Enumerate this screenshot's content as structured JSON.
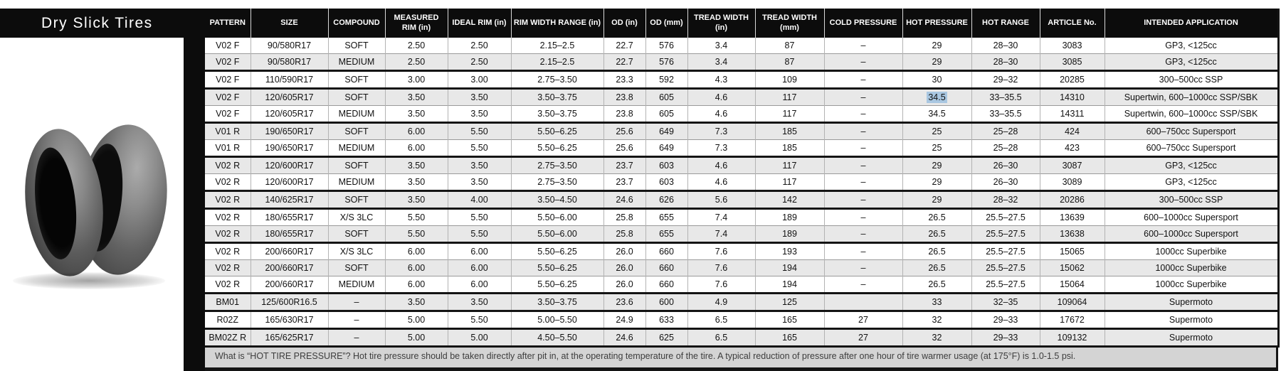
{
  "title": "Dry Slick Tires",
  "colors": {
    "header_bg": "#0c0c0c",
    "row_alt": "#e8e8e8",
    "selection_highlight": "#a9c7e1",
    "footer_bg": "#d4d4d4"
  },
  "graphics": {
    "tire_photo": "two-dry-slick-motorcycle-tires-photo"
  },
  "table": {
    "columns": [
      "PATTERN",
      "SIZE",
      "COMPOUND",
      "MEASURED RIM (in)",
      "IDEAL RIM (in)",
      "RIM WIDTH RANGE (in)",
      "OD (in)",
      "OD (mm)",
      "TREAD WIDTH (in)",
      "TREAD WIDTH (mm)",
      "COLD PRESSURE",
      "HOT PRESSURE",
      "HOT RANGE",
      "ARTICLE No.",
      "INTENDED APPLICATION"
    ],
    "rows": [
      {
        "cells": [
          "V02 F",
          "90/580R17",
          "SOFT",
          "2.50",
          "2.50",
          "2.15–2.5",
          "22.7",
          "576",
          "3.4",
          "87",
          "–",
          "29",
          "28–30",
          "3083",
          "GP3, <125cc"
        ],
        "thick_below": false,
        "highlight_col": null
      },
      {
        "cells": [
          "V02 F",
          "90/580R17",
          "MEDIUM",
          "2.50",
          "2.50",
          "2.15–2.5",
          "22.7",
          "576",
          "3.4",
          "87",
          "–",
          "29",
          "28–30",
          "3085",
          "GP3, <125cc"
        ],
        "thick_below": true,
        "highlight_col": null
      },
      {
        "cells": [
          "V02 F",
          "110/590R17",
          "SOFT",
          "3.00",
          "3.00",
          "2.75–3.50",
          "23.3",
          "592",
          "4.3",
          "109",
          "–",
          "30",
          "29–32",
          "20285",
          "300–500cc SSP"
        ],
        "thick_below": true,
        "highlight_col": null
      },
      {
        "cells": [
          "V02 F",
          "120/605R17",
          "SOFT",
          "3.50",
          "3.50",
          "3.50–3.75",
          "23.8",
          "605",
          "4.6",
          "117",
          "–",
          "34.5",
          "33–35.5",
          "14310",
          "Supertwin, 600–1000cc SSP/SBK"
        ],
        "thick_below": false,
        "highlight_col": 11
      },
      {
        "cells": [
          "V02 F",
          "120/605R17",
          "MEDIUM",
          "3.50",
          "3.50",
          "3.50–3.75",
          "23.8",
          "605",
          "4.6",
          "117",
          "–",
          "34.5",
          "33–35.5",
          "14311",
          "Supertwin, 600–1000cc SSP/SBK"
        ],
        "thick_below": true,
        "highlight_col": null
      },
      {
        "cells": [
          "V01 R",
          "190/650R17",
          "SOFT",
          "6.00",
          "5.50",
          "5.50–6.25",
          "25.6",
          "649",
          "7.3",
          "185",
          "–",
          "25",
          "25–28",
          "424",
          "600–750cc Supersport"
        ],
        "thick_below": false,
        "highlight_col": null
      },
      {
        "cells": [
          "V01 R",
          "190/650R17",
          "MEDIUM",
          "6.00",
          "5.50",
          "5.50–6.25",
          "25.6",
          "649",
          "7.3",
          "185",
          "–",
          "25",
          "25–28",
          "423",
          "600–750cc Supersport"
        ],
        "thick_below": true,
        "highlight_col": null
      },
      {
        "cells": [
          "V02 R",
          "120/600R17",
          "SOFT",
          "3.50",
          "3.50",
          "2.75–3.50",
          "23.7",
          "603",
          "4.6",
          "117",
          "–",
          "29",
          "26–30",
          "3087",
          "GP3, <125cc"
        ],
        "thick_below": false,
        "highlight_col": null
      },
      {
        "cells": [
          "V02 R",
          "120/600R17",
          "MEDIUM",
          "3.50",
          "3.50",
          "2.75–3.50",
          "23.7",
          "603",
          "4.6",
          "117",
          "–",
          "29",
          "26–30",
          "3089",
          "GP3, <125cc"
        ],
        "thick_below": true,
        "highlight_col": null
      },
      {
        "cells": [
          "V02 R",
          "140/625R17",
          "SOFT",
          "3.50",
          "4.00",
          "3.50–4.50",
          "24.6",
          "626",
          "5.6",
          "142",
          "–",
          "29",
          "28–32",
          "20286",
          "300–500cc SSP"
        ],
        "thick_below": true,
        "highlight_col": null
      },
      {
        "cells": [
          "V02 R",
          "180/655R17",
          "X/S 3LC",
          "5.50",
          "5.50",
          "5.50–6.00",
          "25.8",
          "655",
          "7.4",
          "189",
          "–",
          "26.5",
          "25.5–27.5",
          "13639",
          "600–1000cc Supersport"
        ],
        "thick_below": false,
        "highlight_col": null
      },
      {
        "cells": [
          "V02 R",
          "180/655R17",
          "SOFT",
          "5.50",
          "5.50",
          "5.50–6.00",
          "25.8",
          "655",
          "7.4",
          "189",
          "–",
          "26.5",
          "25.5–27.5",
          "13638",
          "600–1000cc Supersport"
        ],
        "thick_below": true,
        "highlight_col": null
      },
      {
        "cells": [
          "V02 R",
          "200/660R17",
          "X/S 3LC",
          "6.00",
          "6.00",
          "5.50–6.25",
          "26.0",
          "660",
          "7.6",
          "193",
          "–",
          "26.5",
          "25.5–27.5",
          "15065",
          "1000cc Superbike"
        ],
        "thick_below": false,
        "highlight_col": null
      },
      {
        "cells": [
          "V02 R",
          "200/660R17",
          "SOFT",
          "6.00",
          "6.00",
          "5.50–6.25",
          "26.0",
          "660",
          "7.6",
          "194",
          "–",
          "26.5",
          "25.5–27.5",
          "15062",
          "1000cc Superbike"
        ],
        "thick_below": false,
        "highlight_col": null
      },
      {
        "cells": [
          "V02 R",
          "200/660R17",
          "MEDIUM",
          "6.00",
          "6.00",
          "5.50–6.25",
          "26.0",
          "660",
          "7.6",
          "194",
          "–",
          "26.5",
          "25.5–27.5",
          "15064",
          "1000cc Superbike"
        ],
        "thick_below": true,
        "highlight_col": null
      },
      {
        "cells": [
          "BM01",
          "125/600R16.5",
          "–",
          "3.50",
          "3.50",
          "3.50–3.75",
          "23.6",
          "600",
          "4.9",
          "125",
          "",
          "33",
          "32–35",
          "109064",
          "Supermoto"
        ],
        "thick_below": true,
        "highlight_col": null
      },
      {
        "cells": [
          "R02Z",
          "165/630R17",
          "–",
          "5.00",
          "5.50",
          "5.00–5.50",
          "24.9",
          "633",
          "6.5",
          "165",
          "27",
          "32",
          "29–33",
          "17672",
          "Supermoto"
        ],
        "thick_below": true,
        "highlight_col": null
      },
      {
        "cells": [
          "BM02Z R",
          "165/625R17",
          "–",
          "5.00",
          "5.00",
          "4.50–5.50",
          "24.6",
          "625",
          "6.5",
          "165",
          "27",
          "32",
          "29–33",
          "109132",
          "Supermoto"
        ],
        "thick_below": true,
        "highlight_col": null
      }
    ]
  },
  "footer_note": "What is “HOT TIRE PRESSURE”? Hot tire pressure should be taken directly after pit in, at the operating temperature of the tire. A typical reduction of pressure after one hour of tire warmer usage (at 175°F) is 1.0-1.5 psi."
}
